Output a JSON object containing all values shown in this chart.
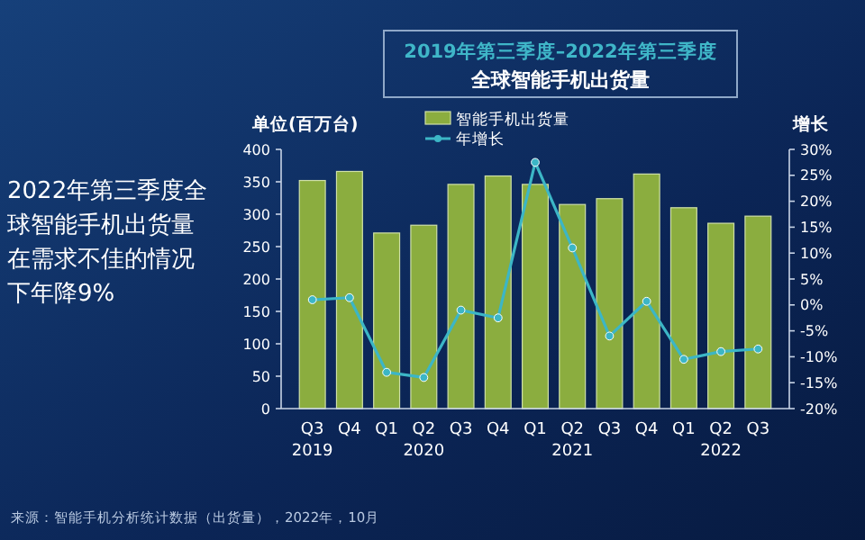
{
  "chart_data": {
    "type": "bar",
    "title": "2019年第三季度–2022年第三季度",
    "subtitle": "全球智能手机出货量",
    "ylabel": "单位(百万台)",
    "y2label": "增长",
    "categories": [
      "Q3\n2019",
      "Q4",
      "Q1",
      "Q2\n2020",
      "Q3",
      "Q4",
      "Q1",
      "Q2\n2021",
      "Q3",
      "Q4",
      "Q1",
      "Q2\n2022",
      "Q3"
    ],
    "series": [
      {
        "name": "智能手机出货量",
        "color": "#8bad3f",
        "values": [
          352,
          366,
          271,
          283,
          346,
          359,
          346,
          315,
          324,
          362,
          310,
          286,
          297
        ]
      },
      {
        "name": "年增长",
        "type": "line",
        "axis": "y2",
        "color": "#3cb6c6",
        "values": [
          1,
          1.4,
          -13,
          -14,
          -1,
          -2.5,
          27.5,
          11,
          -6,
          0.7,
          -10.5,
          -9,
          -8.5
        ]
      }
    ],
    "ylim": [
      0,
      400
    ],
    "yticks": [
      0,
      50,
      100,
      150,
      200,
      250,
      300,
      350,
      400
    ],
    "y2lim": [
      -20,
      30
    ],
    "y2ticks": [
      {
        "value": -20,
        "label": "-20%"
      },
      {
        "value": -15,
        "label": "-15%"
      },
      {
        "value": -10,
        "label": "-10%"
      },
      {
        "value": -5,
        "label": "-5%"
      },
      {
        "value": 0,
        "label": "0%"
      },
      {
        "value": 5,
        "label": "5%"
      },
      {
        "value": 10,
        "label": "10%"
      },
      {
        "value": 15,
        "label": "15%"
      },
      {
        "value": 20,
        "label": "20%"
      },
      {
        "value": 25,
        "label": "25%"
      },
      {
        "value": 30,
        "label": "30%"
      }
    ],
    "annotations": [
      "2022年第三季度全球智能手机出货量在需求不佳的情况下年降9%",
      "来源：智能手机分析统计数据（出货量），2022年，10月"
    ],
    "legend": "top left",
    "marker": "circle",
    "line_style": "solid",
    "grid": false
  }
}
